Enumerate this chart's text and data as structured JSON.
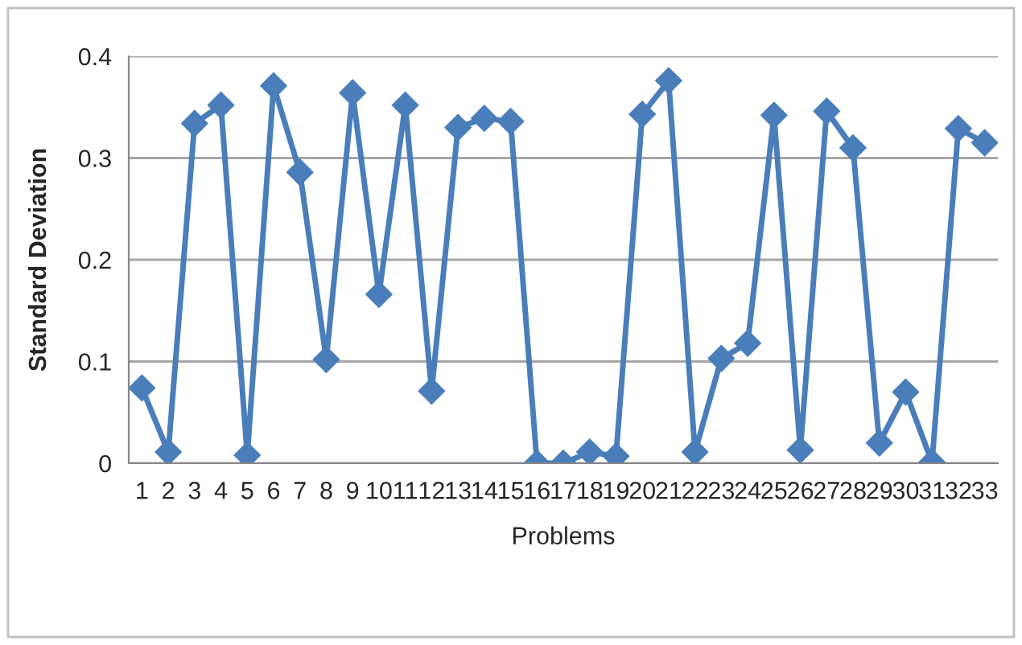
{
  "chart_data": {
    "type": "line",
    "xlabel": "Problems",
    "ylabel": "Standard Deviation",
    "categories": [
      "1",
      "2",
      "3",
      "4",
      "5",
      "6",
      "7",
      "8",
      "9",
      "10",
      "11",
      "12",
      "13",
      "14",
      "15",
      "16",
      "17",
      "18",
      "19",
      "20",
      "21",
      "22",
      "23",
      "24",
      "25",
      "26",
      "27",
      "28",
      "29",
      "30",
      "31",
      "32",
      "33"
    ],
    "series": [
      {
        "color": "#4a7ebb",
        "values": [
          0.074,
          0.011,
          0.334,
          0.352,
          0.008,
          0.371,
          0.286,
          0.102,
          0.364,
          0.166,
          0.352,
          0.071,
          0.33,
          0.339,
          0.336,
          0.0,
          0.0,
          0.011,
          0.007,
          0.343,
          0.376,
          0.011,
          0.103,
          0.118,
          0.342,
          0.013,
          0.346,
          0.31,
          0.02,
          0.07,
          0.001,
          0.329,
          0.315
        ]
      }
    ],
    "ylim": [
      0,
      0.4
    ],
    "yticks": [
      {
        "value": 0,
        "label": "0"
      },
      0.1,
      0.2,
      0.3,
      0.4
    ],
    "grid": "y",
    "legend": false,
    "marker": "diamond",
    "line_style": "solid"
  }
}
